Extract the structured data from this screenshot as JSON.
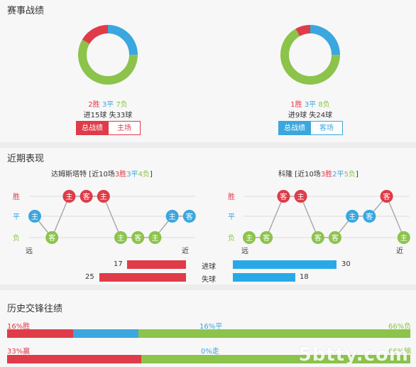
{
  "sections": {
    "record_title": "赛事战绩",
    "recent_title": "近期表现",
    "history_title": "历史交锋往绩"
  },
  "left_team": {
    "record": {
      "win": 2,
      "draw": 3,
      "loss": 7
    },
    "win_text": "2胜",
    "draw_text": "3平",
    "loss_text": "7负",
    "goals_text": "进15球 失33球",
    "tabs": [
      "总战绩",
      "主场"
    ],
    "recent_header_prefix": "达姆斯塔特 [近10场",
    "recent_win": "3胜",
    "recent_draw": "3平",
    "recent_loss": "4负",
    "recent_close": "]",
    "recent_results": [
      "平",
      "负",
      "胜",
      "胜",
      "胜",
      "负",
      "负",
      "负",
      "平",
      "平"
    ],
    "recent_venue": [
      "主",
      "客",
      "主",
      "客",
      "主",
      "主",
      "客",
      "主",
      "主",
      "客"
    ],
    "goals_for": 17,
    "goals_against": 25
  },
  "right_team": {
    "record": {
      "win": 1,
      "draw": 3,
      "loss": 8
    },
    "win_text": "1胜",
    "draw_text": "3平",
    "loss_text": "8负",
    "goals_text": "进9球 失24球",
    "tabs": [
      "总战绩",
      "客场"
    ],
    "recent_header_prefix": "科隆 [近10场",
    "recent_win": "3胜",
    "recent_draw": "2平",
    "recent_loss": "5负",
    "recent_close": "]",
    "recent_results": [
      "负",
      "负",
      "胜",
      "胜",
      "负",
      "负",
      "平",
      "平",
      "胜",
      "负"
    ],
    "recent_venue": [
      "主",
      "客",
      "客",
      "主",
      "客",
      "客",
      "主",
      "客",
      "客",
      "主"
    ],
    "goals_for": 30,
    "goals_against": 18
  },
  "recent_axis": {
    "win": "胜",
    "draw": "平",
    "loss": "负",
    "far": "远",
    "near": "近"
  },
  "goal_labels": {
    "for": "进球",
    "against": "失球"
  },
  "history": {
    "row1": {
      "win_pct": 16,
      "draw_pct": 16,
      "loss_pct": 66,
      "win_text": "16%胜",
      "draw_text": "16%平",
      "loss_text": "66%负"
    },
    "row2": {
      "win_pct": 33,
      "draw_pct": 0,
      "loss_pct": 66,
      "win_text": "33%赢",
      "draw_text": "0%走",
      "loss_text": "66%输"
    }
  },
  "colors": {
    "win": "#e03b48",
    "draw": "#3aa7de",
    "loss": "#8cc34b",
    "grid": "#dddddd"
  },
  "watermark": "5btty.com"
}
